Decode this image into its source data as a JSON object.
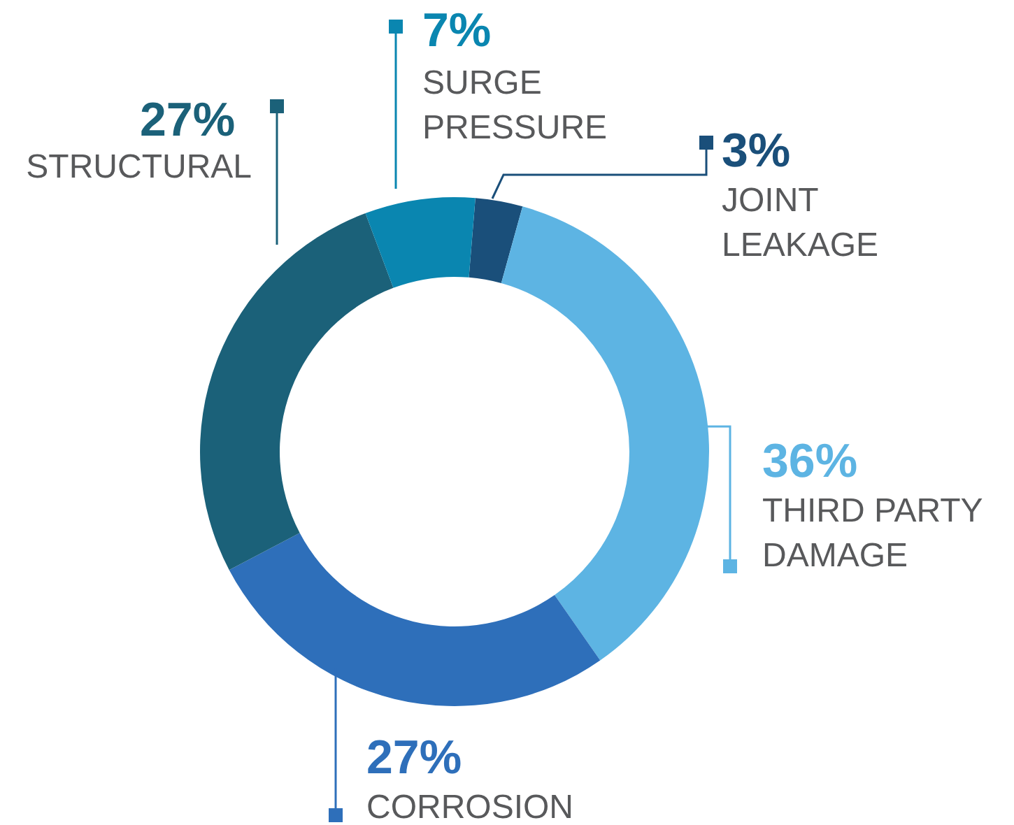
{
  "chart_data": {
    "type": "donut",
    "categories": [
      "JOINT LEAKAGE",
      "THIRD PARTY DAMAGE",
      "CORROSION",
      "STRUCTURAL",
      "SURGE PRESSURE"
    ],
    "values": [
      3,
      36,
      27,
      27,
      7
    ],
    "value_labels": [
      "3%",
      "36%",
      "27%",
      "27%",
      "7%"
    ],
    "colors": [
      "#1a4f7a",
      "#5db4e3",
      "#2e6fba",
      "#1b6179",
      "#0a86b0"
    ],
    "legend": "top"
  }
}
